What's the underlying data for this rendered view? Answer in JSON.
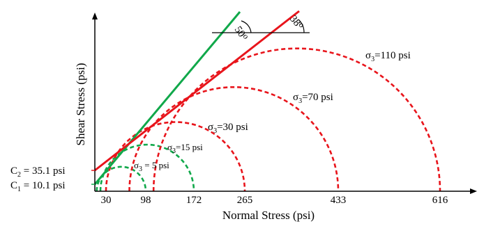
{
  "diagram": {
    "x_axis_title": "Normal Stress (psi)",
    "y_axis_title": "Shear Stress (psi)",
    "x_tick_labels": [
      "30",
      "98",
      "172",
      "265",
      "433",
      "616"
    ],
    "cohesion_labels": [
      {
        "id": "c2",
        "letter": "C",
        "sub": "2",
        "text": " = 35.1 psi"
      },
      {
        "id": "c1",
        "letter": "C",
        "sub": "1",
        "text": " = 10.1 psi"
      }
    ],
    "circle_labels": [
      {
        "id": "s110",
        "symbol": "σ",
        "sub": "3",
        "text": "=110 psi"
      },
      {
        "id": "s70",
        "symbol": "σ",
        "sub": "3",
        "text": "=70 psi"
      },
      {
        "id": "s30",
        "symbol": "σ",
        "sub": "3",
        "text": "=30 psi"
      },
      {
        "id": "s15",
        "symbol": "σ",
        "sub": "3",
        "text": "=15 psi"
      },
      {
        "id": "s5",
        "symbol": "σ",
        "sub": "3",
        "text": " = 5 psi"
      }
    ],
    "angle_labels": [
      {
        "id": "a50",
        "value": "50",
        "unit": "o"
      },
      {
        "id": "a38",
        "value": "38",
        "unit": "o"
      }
    ],
    "colors": {
      "red": "#e8141b",
      "green": "#10a84a",
      "axis": "#000000"
    },
    "envelopes": [
      {
        "name": "green",
        "friction_angle_deg": 50,
        "cohesion_psi": 10.1
      },
      {
        "name": "red",
        "friction_angle_deg": 38,
        "cohesion_psi": 35.1
      }
    ],
    "mohr_circles": [
      {
        "sigma3_psi": 5,
        "sigma1_psi": 98,
        "color": "green"
      },
      {
        "sigma3_psi": 15,
        "sigma1_psi": 172,
        "color": "green"
      },
      {
        "sigma3_psi": 30,
        "sigma1_psi": 265,
        "color": "red"
      },
      {
        "sigma3_psi": 70,
        "sigma1_psi": 433,
        "color": "red"
      },
      {
        "sigma3_psi": 110,
        "sigma1_psi": 616,
        "color": "red"
      }
    ]
  }
}
